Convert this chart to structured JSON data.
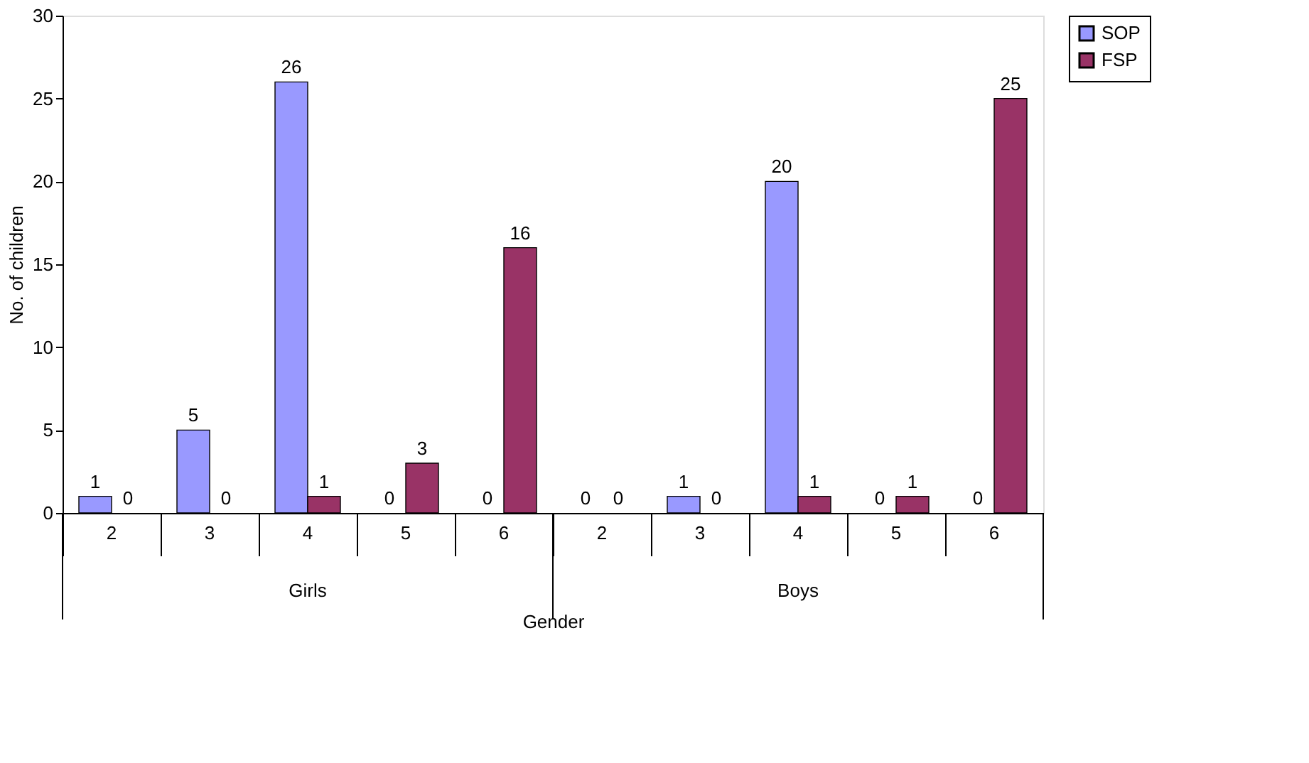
{
  "chart_data": {
    "type": "bar",
    "xlabel": "Gender",
    "ylabel": "No. of children",
    "categories": [
      "2",
      "3",
      "4",
      "5",
      "6",
      "2",
      "3",
      "4",
      "5",
      "6"
    ],
    "annotations": [
      "Girls",
      "Boys"
    ],
    "series": [
      {
        "name": "SOP",
        "color": "#9999ff",
        "values": [
          1,
          5,
          26,
          0,
          0,
          0,
          1,
          20,
          0,
          0
        ]
      },
      {
        "name": "FSP",
        "color": "#993366",
        "values": [
          0,
          0,
          1,
          3,
          16,
          0,
          0,
          1,
          1,
          25
        ]
      }
    ],
    "ylim": [
      0,
      30
    ],
    "yticks": [
      0,
      5,
      10,
      15,
      20,
      25,
      30
    ],
    "data_labels": true,
    "legend": "right",
    "grid": false
  }
}
